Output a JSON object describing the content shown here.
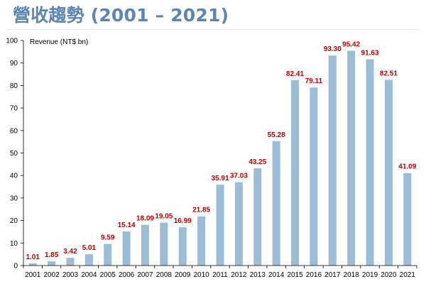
{
  "page": {
    "title": "營收趨勢 (2001 – 2021)"
  },
  "colors": {
    "title": "#5b86b4",
    "bar": "#9dbcd6",
    "data_label": "#c00000",
    "axis": "#000000"
  },
  "chart_data": {
    "type": "bar",
    "title": "",
    "xlabel": "",
    "ylabel": "Revenue (NT$ bn)",
    "ylim": [
      0,
      100
    ],
    "yticks": [
      0,
      10,
      20,
      30,
      40,
      50,
      60,
      70,
      80,
      90,
      100
    ],
    "grid": false,
    "legend": "none",
    "categories": [
      "2001",
      "2002",
      "2003",
      "2004",
      "2005",
      "2006",
      "2007",
      "2008",
      "2009",
      "2010",
      "2011",
      "2012",
      "2013",
      "2014",
      "2015",
      "2016",
      "2017",
      "2018",
      "2019",
      "2020",
      "2021"
    ],
    "values": [
      1.01,
      1.85,
      3.42,
      5.01,
      9.59,
      15.14,
      18.09,
      19.05,
      16.99,
      21.85,
      35.91,
      37.03,
      43.25,
      55.28,
      82.41,
      79.11,
      93.3,
      95.42,
      91.63,
      82.51,
      41.09
    ],
    "value_labels": [
      "1.01",
      "1.85",
      "3.42",
      "5.01",
      "9.59",
      "15.14",
      "18.09",
      "19.05",
      "16.99",
      "21.85",
      "35.91",
      "37.03",
      "43.25",
      "55.28",
      "82.41",
      "79.11",
      "93.30",
      "95.42",
      "91.63",
      "82.51",
      "41.09"
    ]
  }
}
